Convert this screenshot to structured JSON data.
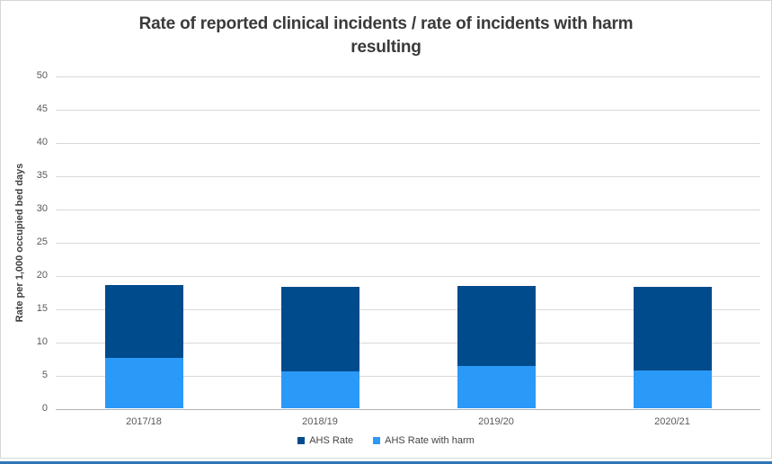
{
  "page": {
    "card_border_color": "#d6d6d6",
    "bottom_accent_color": "#2e75b6"
  },
  "chart_data": {
    "type": "bar",
    "subtype": "overlay-column",
    "title": "Rate of reported clinical incidents / rate of incidents with harm resulting",
    "title_lines": [
      "Rate of reported clinical incidents / rate of incidents with harm",
      "resulting"
    ],
    "xlabel": "",
    "ylabel": "Rate per 1,000 occupied bed days",
    "ylim": [
      0,
      50
    ],
    "yticks": [
      0,
      5,
      10,
      15,
      20,
      25,
      30,
      35,
      40,
      45,
      50
    ],
    "grid": true,
    "legend_position": "bottom",
    "categories": [
      "2017/18",
      "2018/19",
      "2019/20",
      "2020/21"
    ],
    "series": [
      {
        "name": "AHS Rate",
        "color": "#004b8c",
        "values": [
          18.5,
          18.3,
          18.4,
          18.2
        ]
      },
      {
        "name": "AHS Rate with harm",
        "color": "#2b99f8",
        "values": [
          7.6,
          5.6,
          6.4,
          5.7
        ]
      }
    ],
    "colors": {
      "gridline": "#d9d9d9",
      "axis_line": "#b3b3b3",
      "tick_label": "#595959",
      "title": "#3a3a3a"
    }
  }
}
